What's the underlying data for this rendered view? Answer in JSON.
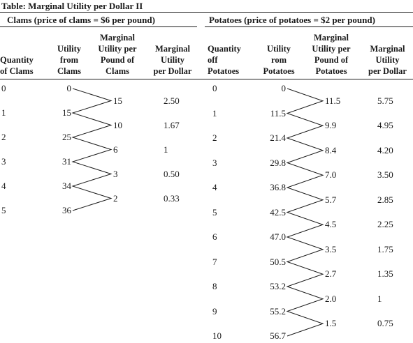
{
  "title": "Table: Marginal Utility per Dollar II",
  "clams": {
    "group_header": "Clams (price of clams = $6 per pound)",
    "headers": {
      "quantity": "Quantity\nof Clams",
      "utility": "Utility\nfrom\nClams",
      "mu_per_pound": "Marginal\nUtility per\nPound of\nClams",
      "mu_per_dollar": "Marginal\nUtility\nper Dollar"
    },
    "quantity": [
      "0",
      "1",
      "2",
      "3",
      "4",
      "5"
    ],
    "utility": [
      "0",
      "15",
      "25",
      "31",
      "34",
      "36"
    ],
    "marginal_utility": [
      "15",
      "10",
      "6",
      "3",
      "2"
    ],
    "mu_per_dollar": [
      "2.50",
      "1.67",
      "1",
      "0.50",
      "0.33"
    ]
  },
  "potatoes": {
    "group_header": "Potatoes (price of potatoes = $2 per pound)",
    "headers": {
      "quantity": "Quantity\noff\nPotatoes",
      "utility": "Utility\nrom\nPotatoes",
      "mu_per_pound": "Marginal\nUtility per\nPound of\nPotatoes",
      "mu_per_dollar": "Marginal\nUtility\nper Dollar"
    },
    "quantity": [
      "0",
      "1",
      "2",
      "3",
      "4",
      "5",
      "6",
      "7",
      "8",
      "9",
      "10"
    ],
    "utility": [
      "0",
      "11.5",
      "21.4",
      "29.8",
      "36.8",
      "42.5",
      "47.0",
      "50.5",
      "53.2",
      "55.2",
      "56.7"
    ],
    "marginal_utility": [
      "11.5",
      "9.9",
      "8.4",
      "7.0",
      "5.7",
      "4.5",
      "3.5",
      "2.7",
      "2.0",
      "1.5"
    ],
    "mu_per_dollar": [
      "5.75",
      "4.95",
      "4.20",
      "3.50",
      "2.85",
      "2.25",
      "1.75",
      "1.35",
      "1",
      "0.75"
    ]
  }
}
